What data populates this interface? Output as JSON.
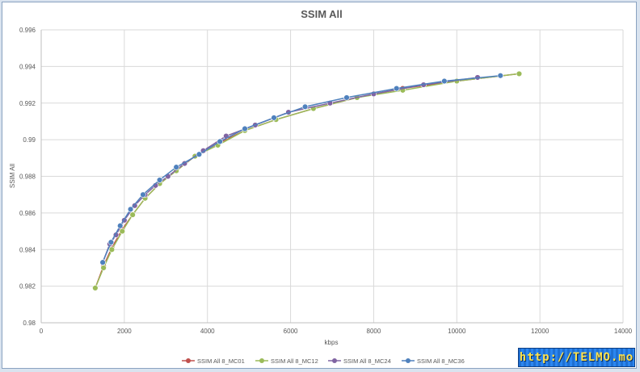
{
  "chart_data": {
    "type": "line",
    "title": "SSIM All",
    "xlabel": "kbps",
    "ylabel": "SSIM All",
    "xlim": [
      0,
      14000
    ],
    "ylim": [
      0.98,
      0.996
    ],
    "x_ticks": [
      0,
      2000,
      4000,
      6000,
      8000,
      10000,
      12000,
      14000
    ],
    "y_ticks": [
      0.98,
      0.982,
      0.984,
      0.986,
      0.988,
      0.99,
      0.992,
      0.994,
      0.996
    ],
    "x_tick_labels": [
      "0",
      "2000",
      "4000",
      "6000",
      "8000",
      "10000",
      "12000",
      "14000"
    ],
    "y_tick_labels": [
      "0.98",
      "0.982",
      "0.984",
      "0.986",
      "0.988",
      "0.99",
      "0.992",
      "0.994",
      "0.996"
    ],
    "grid": true,
    "legend_position": "bottom",
    "series": [
      {
        "name": "SSIM All 8_MC01",
        "color": "#c0504d",
        "x": [
          1300,
          1500,
          1700,
          1950,
          2200,
          2500,
          2850,
          3250,
          3700,
          4250,
          4900,
          5650,
          6550,
          7600,
          8700,
          10000,
          11500
        ],
        "y": [
          0.9819,
          0.9831,
          0.9841,
          0.9851,
          0.9859,
          0.9868,
          0.9876,
          0.9883,
          0.9891,
          0.9898,
          0.9905,
          0.9911,
          0.9917,
          0.9923,
          0.9928,
          0.9932,
          0.9936
        ]
      },
      {
        "name": "SSIM All 8_MC12",
        "color": "#9bbb59",
        "x": [
          1300,
          1500,
          1700,
          1950,
          2200,
          2500,
          2850,
          3250,
          3700,
          4250,
          4900,
          5650,
          6550,
          7600,
          8700,
          10000,
          11500
        ],
        "y": [
          0.9819,
          0.983,
          0.984,
          0.985,
          0.9859,
          0.9868,
          0.9876,
          0.9883,
          0.9891,
          0.9897,
          0.9905,
          0.9911,
          0.9917,
          0.9923,
          0.9927,
          0.9932,
          0.9936
        ]
      },
      {
        "name": "SSIM All 8_MC24",
        "color": "#8064a2",
        "x": [
          1480,
          1650,
          1800,
          2000,
          2250,
          2500,
          2750,
          3050,
          3450,
          3900,
          4450,
          5150,
          5950,
          6950,
          8000,
          9200,
          10500
        ],
        "y": [
          0.9833,
          0.9843,
          0.9848,
          0.9856,
          0.9864,
          0.987,
          0.9875,
          0.988,
          0.9887,
          0.9894,
          0.9902,
          0.9908,
          0.9915,
          0.992,
          0.9925,
          0.993,
          0.9934
        ]
      },
      {
        "name": "SSIM All 8_MC36",
        "color": "#4f81bd",
        "x": [
          1480,
          1680,
          1900,
          2150,
          2450,
          2850,
          3250,
          3800,
          4300,
          4900,
          5600,
          6350,
          7350,
          8550,
          9700,
          11050
        ],
        "y": [
          0.9833,
          0.9844,
          0.9853,
          0.9862,
          0.987,
          0.9878,
          0.9885,
          0.9892,
          0.9899,
          0.9906,
          0.9912,
          0.9918,
          0.9923,
          0.9928,
          0.9932,
          0.9935
        ]
      }
    ]
  },
  "watermark": "http://TELMO.mo"
}
